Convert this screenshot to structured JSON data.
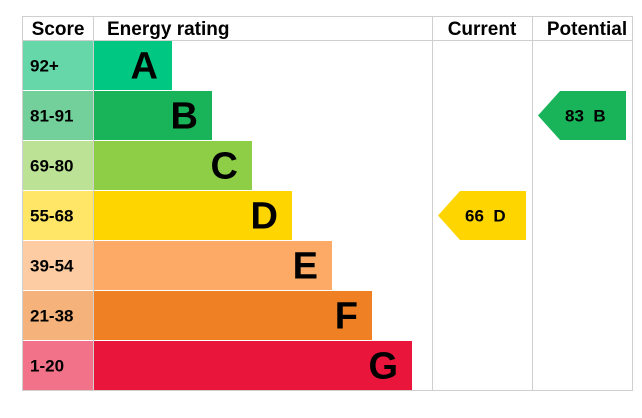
{
  "chart_data": {
    "type": "bar",
    "headers": {
      "score": "Score",
      "rating": "Energy rating",
      "current": "Current",
      "potential": "Potential"
    },
    "bands": [
      {
        "score": "92+",
        "letter": "A",
        "color": "#00c781",
        "score_bg": "#66d7a9"
      },
      {
        "score": "81-91",
        "letter": "B",
        "color": "#19b459",
        "score_bg": "#74d09b"
      },
      {
        "score": "69-80",
        "letter": "C",
        "color": "#8dce46",
        "score_bg": "#bce395"
      },
      {
        "score": "55-68",
        "letter": "D",
        "color": "#ffd500",
        "score_bg": "#ffe666"
      },
      {
        "score": "39-54",
        "letter": "E",
        "color": "#fcaa65",
        "score_bg": "#fdcca3"
      },
      {
        "score": "21-38",
        "letter": "F",
        "color": "#ef8023",
        "score_bg": "#f5b37b"
      },
      {
        "score": "1-20",
        "letter": "G",
        "color": "#e9153b",
        "score_bg": "#f27389"
      }
    ],
    "current": {
      "value": 66,
      "letter": "D",
      "label": "66  D",
      "color": "#ffd500"
    },
    "potential": {
      "value": 83,
      "letter": "B",
      "label": "83  B",
      "color": "#19b459"
    }
  }
}
